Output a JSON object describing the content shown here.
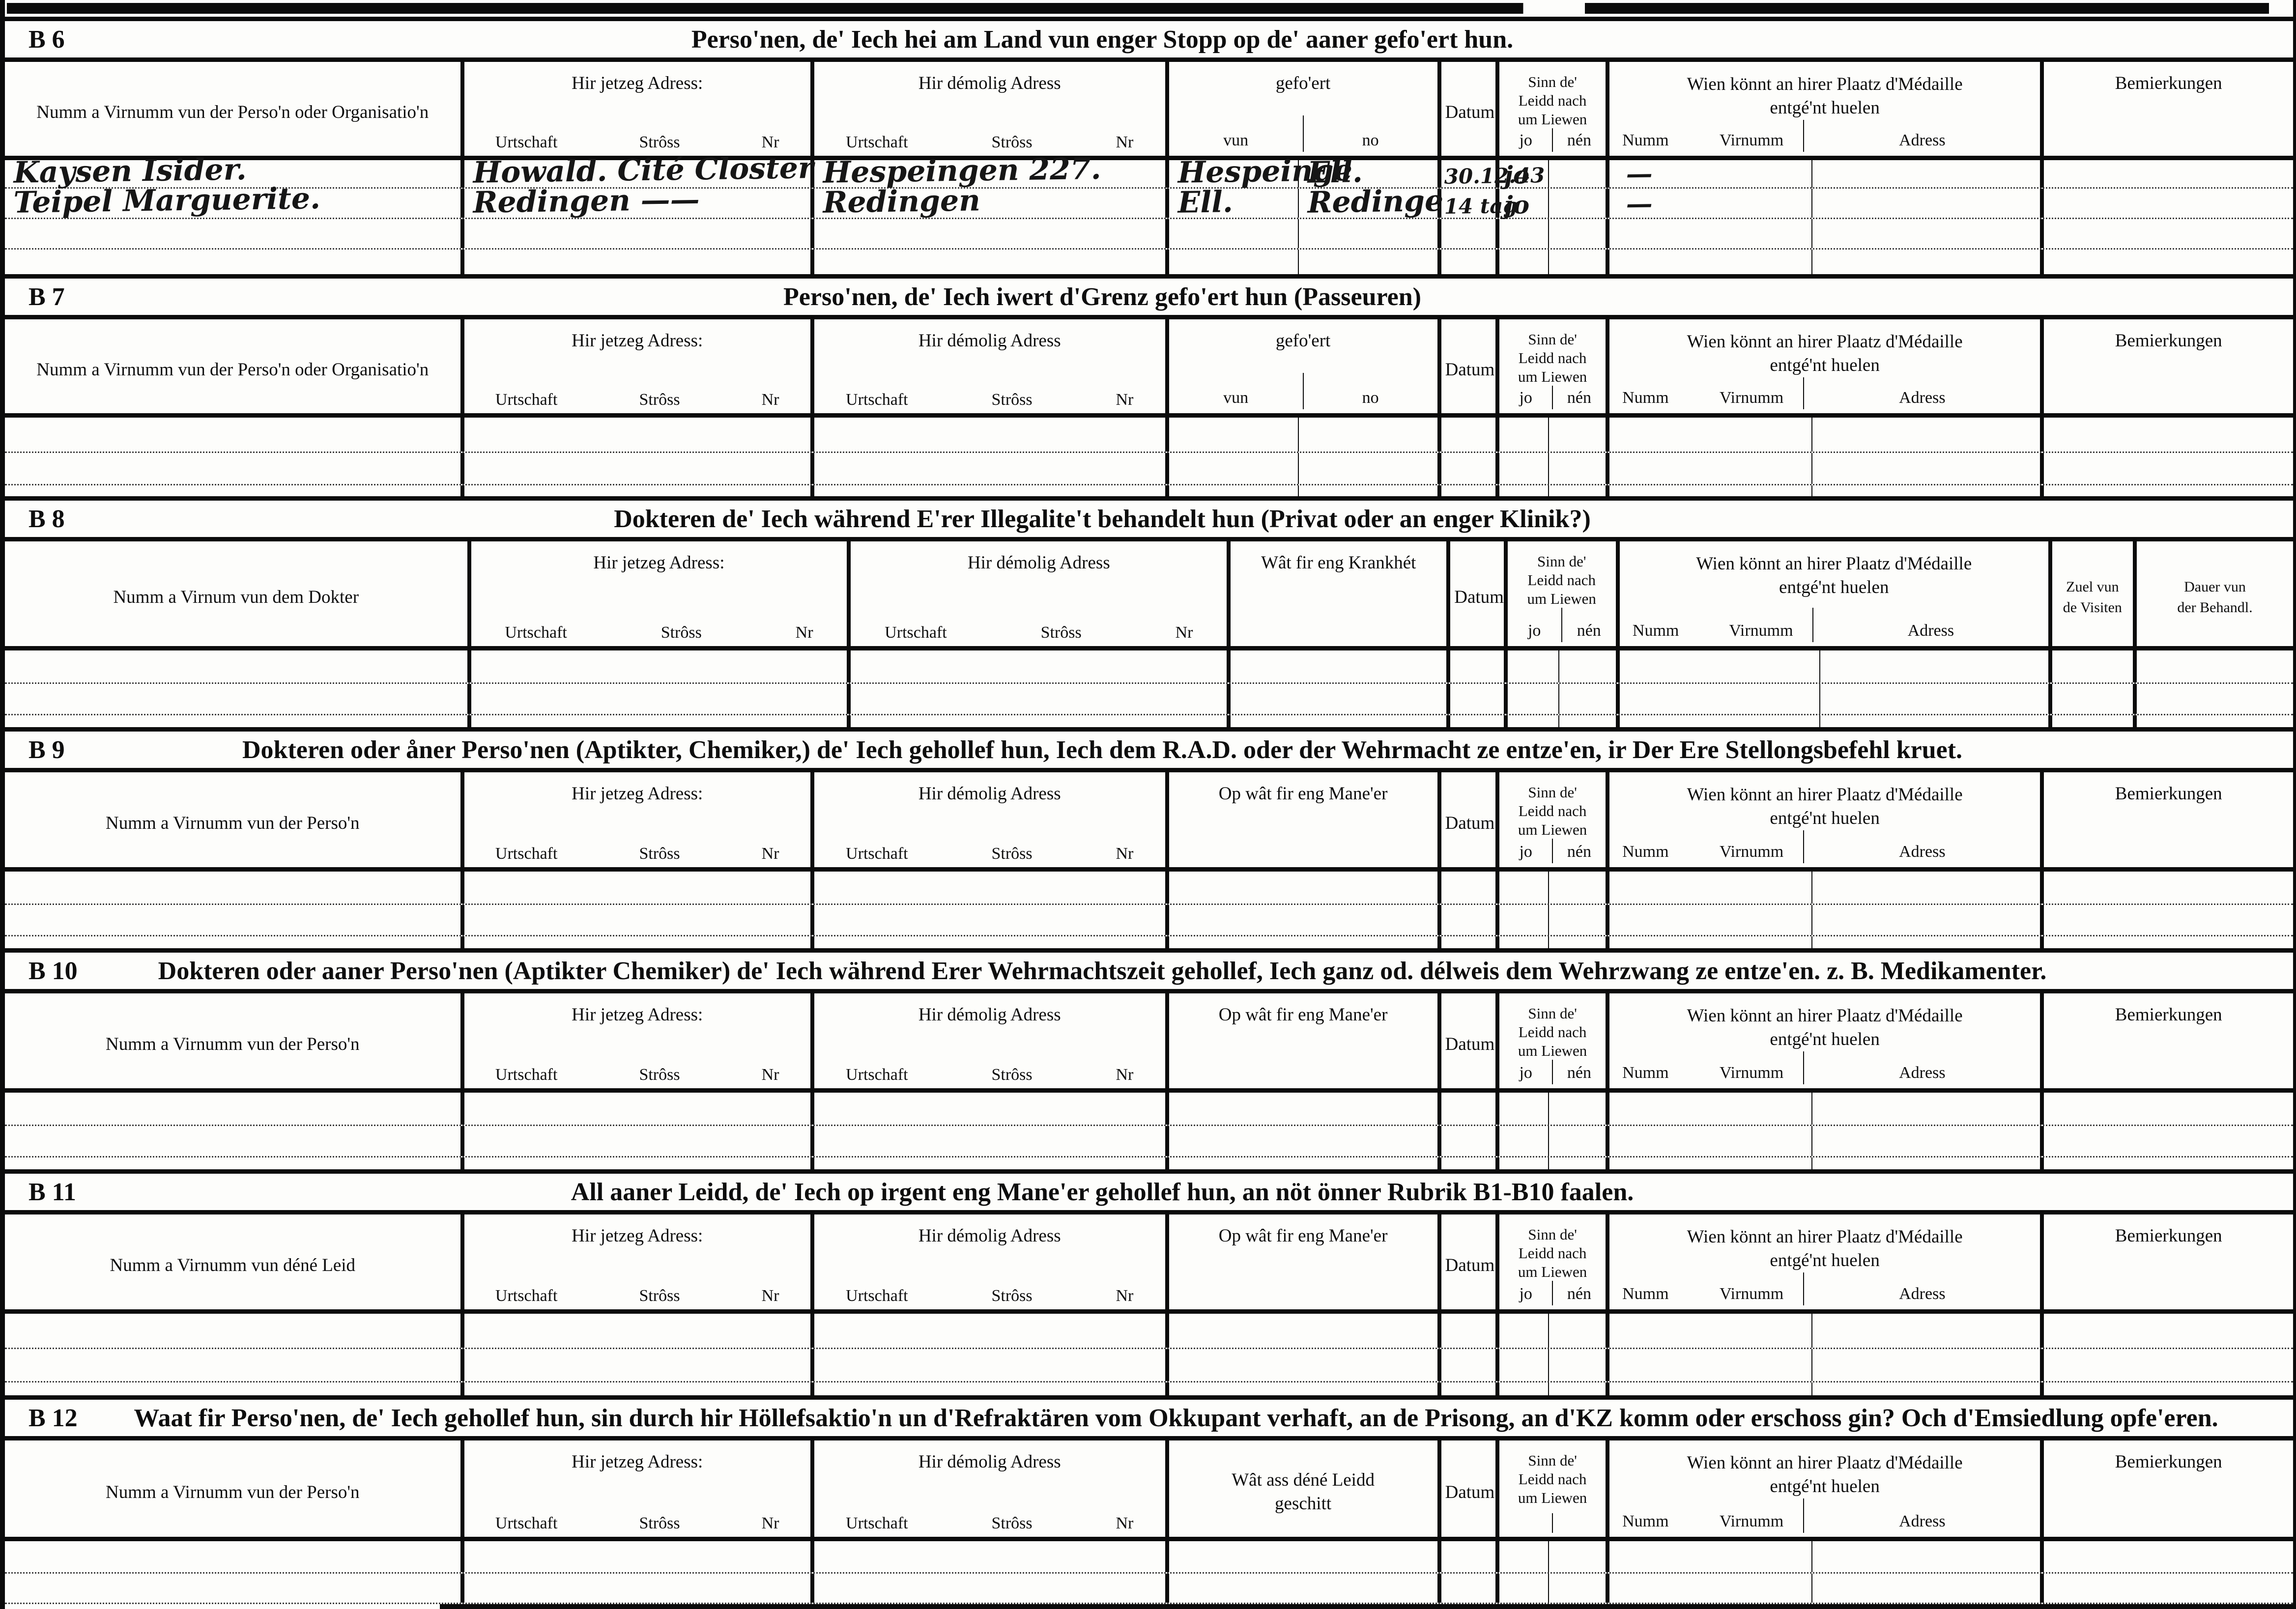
{
  "common": {
    "jetzeg_adress": "Hir jetzeg Adress:",
    "demolig_adress": "Hir démolig Adress",
    "urtschaft": "Urtschaft",
    "stross": "Strôss",
    "nr": "Nr",
    "gefoert": "gefo'ert",
    "vun": "vun",
    "no": "no",
    "datum": "Datum",
    "sinn_1": "Sinn de'",
    "sinn_2": "Leidd nach",
    "sinn_3": "um Liewen",
    "jo": "jo",
    "nen": "nén",
    "medaille_1": "Wien könnt an hirer Plaatz d'Médaille",
    "medaille_2": "entgé'nt huelen",
    "numm": "Numm",
    "virnumm": "Virnumm",
    "adress": "Adress",
    "bemierkungen": "Bemierkungen",
    "maneer": "Op wât fir eng Mane'er",
    "krankheit": "Wât fir eng Krankhét",
    "geschitt_1": "Wât ass déné Leidd",
    "geschitt_2": "geschitt",
    "zuel_1": "Zuel vun",
    "zuel_2": "de Visiten",
    "dauer_1": "Dauer vun",
    "dauer_2": "der Behandl."
  },
  "sections": [
    {
      "id": "B 6",
      "title": "Perso'nen, de' Iech hei am Land vun enger Stopp op de' aaner gefo'ert hun.",
      "name_label": "Numm a Virnumm vun der Perso'n oder Organisatio'n"
    },
    {
      "id": "B 7",
      "title": "Perso'nen, de' Iech iwert d'Grenz gefo'ert hun (Passeuren)",
      "name_label": "Numm a Virnumm vun der Perso'n oder Organisatio'n"
    },
    {
      "id": "B 8",
      "title": "Dokteren de' Iech während E'rer Illegalite't behandelt hun (Privat oder an enger Klinik?)",
      "name_label": "Numm a Virnum vun dem Dokter"
    },
    {
      "id": "B 9",
      "title": "Dokteren oder åner Perso'nen (Aptikter, Chemiker,) de' Iech gehollef hun, Iech dem R.A.D. oder der Wehrmacht ze entze'en, ir Der Ere Stellongsbefehl kruet.",
      "name_label": "Numm a Virnumm vun der Perso'n"
    },
    {
      "id": "B 10",
      "title": "Dokteren oder aaner Perso'nen (Aptikter Chemiker) de' Iech während Erer Wehrmachtszeit gehollef, Iech ganz od. délweis dem Wehrzwang ze entze'en. z. B. Medikamenter.",
      "name_label": "Numm a Virnumm vun der Perso'n"
    },
    {
      "id": "B 11",
      "title": "All aaner Leidd, de' Iech op irgent eng Mane'er gehollef hun, an nöt önner Rubrik B1-B10 faalen.",
      "name_label": "Numm a Virnumm vun déné Leid"
    },
    {
      "id": "B 12",
      "title": "Waat fir Perso'nen, de' Iech gehollef hun, sin durch hir Höllefsaktio'n un d'Refraktären vom Okkupant verhaft, an de Prisong, an d'KZ komm oder erschoss gin? Och d'Emsiedlung opfe'eren.",
      "name_label": "Numm a Virnumm vun der Perso'n"
    }
  ],
  "b6_entries": [
    {
      "name": "Kaysen Isider.",
      "jetzeg": "Howald. Cité Closter",
      "demolig": "Hespeingen 227.",
      "vun": "Hespeinge",
      "no": "Ell.",
      "datum": "30.12.43",
      "liewen": "jo",
      "medaille": "—"
    },
    {
      "name": "Teipel Marguerite.",
      "jetzeg": "Redingen ——",
      "demolig": "Redingen",
      "vun": "Ell.",
      "no": "Redinge",
      "datum": "14 tag",
      "liewen": "jo",
      "medaille": "—"
    }
  ]
}
